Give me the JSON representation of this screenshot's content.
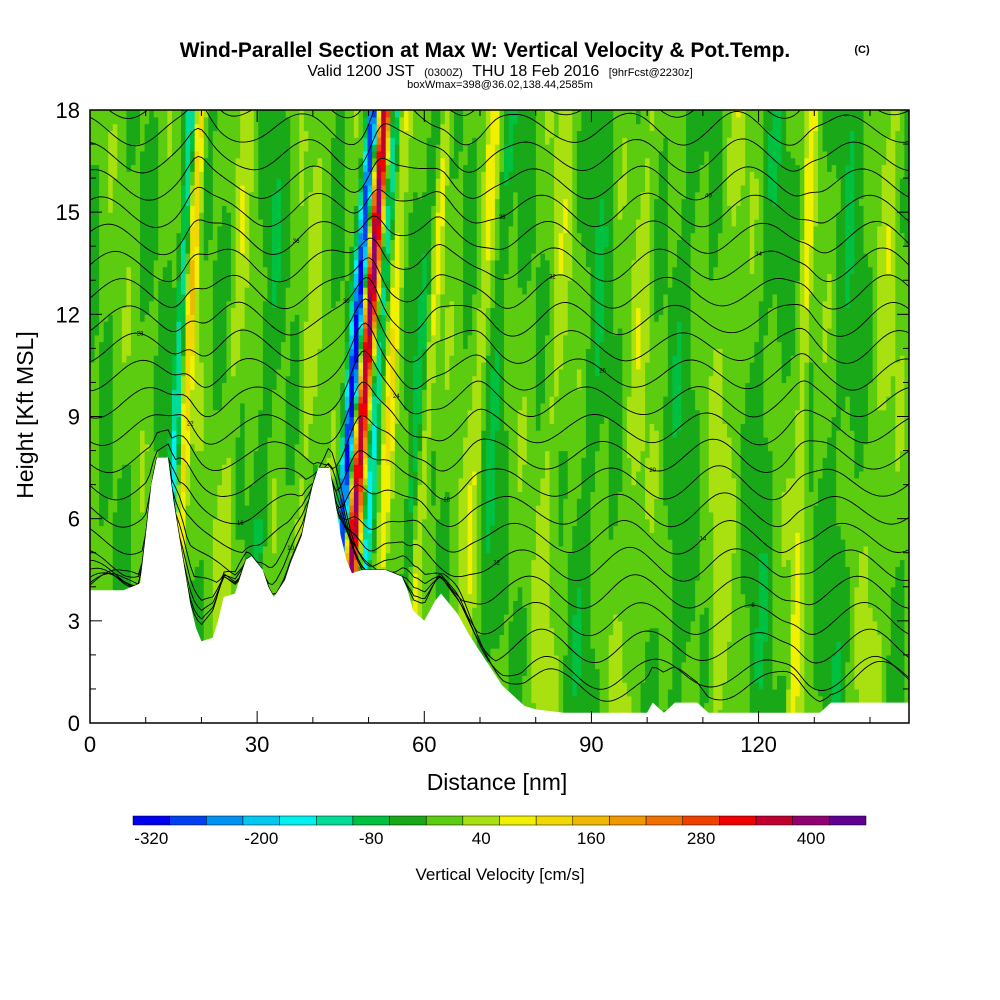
{
  "title": {
    "main": "Wind-Parallel Section at Max W: Vertical Velocity & Pot.Temp.",
    "main_suffix": "(C)",
    "valid_prefix": "Valid 1200 JST",
    "valid_utc": "(0300Z)",
    "valid_date": "THU 18 Feb 2016",
    "forecast": "[9hrFcst@2230z]",
    "box": "boxWmax=398@36.02,138.44,2585m"
  },
  "chart_data": {
    "type": "heatmap",
    "xlabel": "Distance [nm]",
    "ylabel": "Height [Kft MSL]",
    "xlim": [
      0,
      147
    ],
    "ylim": [
      0,
      18
    ],
    "x_ticks": [
      0,
      30,
      60,
      90,
      120
    ],
    "y_ticks": [
      0,
      3,
      6,
      9,
      12,
      15,
      18
    ],
    "grid": false,
    "colorbar": {
      "title": "Vertical Velocity [cm/s]",
      "labels": [
        "-320",
        "-200",
        "-80",
        "40",
        "160",
        "280",
        "400"
      ],
      "label_positions": [
        -320,
        -200,
        -80,
        40,
        160,
        280,
        400
      ],
      "bins": [
        {
          "lo": -340,
          "hi": -300,
          "color": "#0000f0"
        },
        {
          "lo": -300,
          "hi": -260,
          "color": "#0040f0"
        },
        {
          "lo": -260,
          "hi": -220,
          "color": "#0090f0"
        },
        {
          "lo": -220,
          "hi": -180,
          "color": "#00c8f0"
        },
        {
          "lo": -180,
          "hi": -140,
          "color": "#00f0f0"
        },
        {
          "lo": -140,
          "hi": -100,
          "color": "#00dc98"
        },
        {
          "lo": -100,
          "hi": -60,
          "color": "#00c040"
        },
        {
          "lo": -60,
          "hi": -20,
          "color": "#18a818"
        },
        {
          "lo": -20,
          "hi": 20,
          "color": "#5ccc10"
        },
        {
          "lo": 20,
          "hi": 60,
          "color": "#a8e010"
        },
        {
          "lo": 60,
          "hi": 100,
          "color": "#f0f000"
        },
        {
          "lo": 100,
          "hi": 140,
          "color": "#f0d800"
        },
        {
          "lo": 140,
          "hi": 180,
          "color": "#f0b800"
        },
        {
          "lo": 180,
          "hi": 220,
          "color": "#f09800"
        },
        {
          "lo": 220,
          "hi": 260,
          "color": "#f07000"
        },
        {
          "lo": 260,
          "hi": 300,
          "color": "#f04000"
        },
        {
          "lo": 300,
          "hi": 340,
          "color": "#f00000"
        },
        {
          "lo": 340,
          "hi": 380,
          "color": "#c00030"
        },
        {
          "lo": 380,
          "hi": 420,
          "color": "#900070"
        },
        {
          "lo": 420,
          "hi": 460,
          "color": "#600090"
        }
      ]
    },
    "terrain_height_kft": [
      [
        0,
        3.9
      ],
      [
        6,
        3.9
      ],
      [
        9,
        4.1
      ],
      [
        10,
        5.5
      ],
      [
        11,
        7.0
      ],
      [
        12,
        7.8
      ],
      [
        14,
        7.8
      ],
      [
        15,
        6.5
      ],
      [
        16,
        5.5
      ],
      [
        17,
        4.5
      ],
      [
        18,
        3.5
      ],
      [
        19,
        2.8
      ],
      [
        20,
        2.4
      ],
      [
        22,
        2.5
      ],
      [
        23,
        3.0
      ],
      [
        24,
        3.7
      ],
      [
        26,
        3.8
      ],
      [
        27,
        4.3
      ],
      [
        28,
        4.8
      ],
      [
        29,
        4.9
      ],
      [
        31,
        4.5
      ],
      [
        32,
        4.0
      ],
      [
        33,
        3.7
      ],
      [
        35,
        4.2
      ],
      [
        36,
        4.7
      ],
      [
        38,
        5.5
      ],
      [
        39,
        6.3
      ],
      [
        40,
        7.0
      ],
      [
        41,
        7.5
      ],
      [
        43,
        7.5
      ],
      [
        44,
        6.5
      ],
      [
        45,
        5.5
      ],
      [
        46,
        4.8
      ],
      [
        47,
        4.4
      ],
      [
        49,
        4.5
      ],
      [
        51,
        4.5
      ],
      [
        53,
        4.5
      ],
      [
        56,
        4.3
      ],
      [
        57,
        3.9
      ],
      [
        58,
        3.3
      ],
      [
        60,
        3.0
      ],
      [
        62,
        3.6
      ],
      [
        63,
        3.8
      ],
      [
        66,
        3.2
      ],
      [
        68,
        2.6
      ],
      [
        70,
        2.1
      ],
      [
        72,
        1.6
      ],
      [
        74,
        1.1
      ],
      [
        76,
        0.8
      ],
      [
        78,
        0.5
      ],
      [
        80,
        0.4
      ],
      [
        85,
        0.3
      ],
      [
        100,
        0.3
      ],
      [
        101,
        0.6
      ],
      [
        103,
        0.3
      ],
      [
        105,
        0.6
      ],
      [
        109,
        0.6
      ],
      [
        111,
        0.3
      ],
      [
        120,
        0.3
      ],
      [
        131,
        0.3
      ],
      [
        133,
        0.6
      ],
      [
        147,
        0.6
      ]
    ],
    "contour_levels_base": [
      2,
      4,
      6,
      8,
      10,
      12,
      14,
      16,
      18,
      20,
      22,
      24,
      26,
      28,
      30,
      32,
      34,
      36,
      38,
      40,
      42,
      44,
      46
    ],
    "contour_labels": [
      "8",
      "10",
      "12",
      "14",
      "16",
      "18",
      "20",
      "22",
      "24",
      "26",
      "28",
      "30",
      "32",
      "34",
      "36",
      "38",
      "40"
    ],
    "velocity_field": {
      "background": -10,
      "updraft_columns": [
        {
          "x": 44.8,
          "tilt": 0.45,
          "width": 1.3,
          "amp": 398
        },
        {
          "x": 14.5,
          "tilt": 0.3,
          "width": 1.0,
          "amp": 150
        },
        {
          "x": 51.0,
          "tilt": 0.3,
          "width": 1.1,
          "amp": 90
        },
        {
          "x": 57.0,
          "tilt": 0.4,
          "width": 1.0,
          "amp": 80
        },
        {
          "x": 66.5,
          "tilt": 0.35,
          "width": 1.2,
          "amp": 70
        },
        {
          "x": 126.0,
          "tilt": 0.2,
          "width": 1.0,
          "amp": 75
        },
        {
          "x": 23.0,
          "tilt": 0.3,
          "width": 1.5,
          "amp": 40
        },
        {
          "x": 36.0,
          "tilt": 0.3,
          "width": 1.5,
          "amp": 40
        },
        {
          "x": 81.0,
          "tilt": 0.25,
          "width": 2.0,
          "amp": 40
        },
        {
          "x": 96.0,
          "tilt": 0.25,
          "width": 2.0,
          "amp": 40
        },
        {
          "x": 112.0,
          "tilt": 0.25,
          "width": 2.0,
          "amp": 40
        },
        {
          "x": 140.0,
          "tilt": 0.25,
          "width": 2.0,
          "amp": 40
        }
      ],
      "downdraft_columns": [
        {
          "x": 42.8,
          "tilt": 0.45,
          "width": 1.1,
          "amp": -320
        },
        {
          "x": 12.8,
          "tilt": 0.3,
          "width": 0.9,
          "amp": -140
        },
        {
          "x": 47.5,
          "tilt": 0.4,
          "width": 1.0,
          "amp": -130
        },
        {
          "x": 55.0,
          "tilt": 0.4,
          "width": 1.0,
          "amp": -80
        },
        {
          "x": 69.5,
          "tilt": 0.35,
          "width": 1.2,
          "amp": -60
        },
        {
          "x": 28.5,
          "tilt": 0.3,
          "width": 1.5,
          "amp": -40
        },
        {
          "x": 88.0,
          "tilt": 0.25,
          "width": 2.0,
          "amp": -35
        },
        {
          "x": 104.0,
          "tilt": 0.25,
          "width": 2.0,
          "amp": -35
        },
        {
          "x": 119.0,
          "tilt": 0.25,
          "width": 2.0,
          "amp": -35
        },
        {
          "x": 133.0,
          "tilt": 0.25,
          "width": 2.0,
          "amp": -35
        }
      ]
    }
  }
}
